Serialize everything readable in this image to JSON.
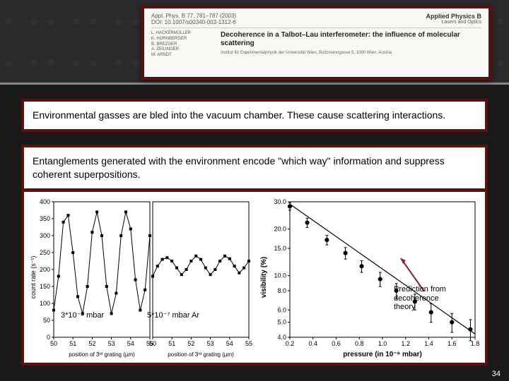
{
  "header": {
    "ref": "Appl. Phys. B 77, 781–787 (2003)",
    "doi": "DOI: 10.1007/s00340-003-1312-6",
    "journal": "Applied Physics B",
    "journal_sub": "Lasers and Optics",
    "authors": [
      "L. HACKERMÜLLER",
      "K. HORNBERGER",
      "B. BREZGER",
      "A. ZEILINGER",
      "M. ARNDT"
    ],
    "title": "Decoherence in a Talbot–Lau interferometer: the influence of molecular scattering",
    "affiliation": "Institut für Experimentalphysik der Universität Wien, Boltzmanngasse 5, 1090 Wien, Austria"
  },
  "text1": "Environmental gasses are bled into the vacuum chamber. These cause scattering interactions.",
  "text2": "Entanglements generated with the environment encode \"which way\" information and suppress coherent superpositions.",
  "annot_left": "3*10⁻⁸ mbar",
  "annot_mid": "5*10⁻⁷ mbar Ar",
  "annot_right": "Prediction from decoherence theory",
  "page_number": "34",
  "left_chart": {
    "type": "line-scatter-dual",
    "ylabel": "count rate (s⁻¹)",
    "ylim": [
      0,
      400
    ],
    "ytick_step": 50,
    "xlabel_a": "position of 3ʳᵈ grating (µm)",
    "xlabel_b": "position of 3ʳᵈ grating (µm)",
    "xlim": [
      50,
      55
    ],
    "xtick_step": 1,
    "marker": "square",
    "marker_size": 4,
    "marker_color": "#000000",
    "line_color": "#000000",
    "background_color": "#ffffff",
    "axis_color": "#000000",
    "font_size": 9,
    "panel_a": {
      "x": [
        50.0,
        50.25,
        50.5,
        50.75,
        51.0,
        51.25,
        51.5,
        51.75,
        52.0,
        52.25,
        52.5,
        52.75,
        53.0,
        53.25,
        53.5,
        53.75,
        54.0,
        54.25,
        54.5,
        54.75,
        55.0
      ],
      "y": [
        80,
        180,
        340,
        360,
        250,
        120,
        70,
        150,
        310,
        370,
        300,
        150,
        70,
        130,
        300,
        370,
        320,
        170,
        80,
        140,
        300
      ]
    },
    "panel_b": {
      "x": [
        50.0,
        50.25,
        50.5,
        50.75,
        51.0,
        51.25,
        51.5,
        51.75,
        52.0,
        52.25,
        52.5,
        52.75,
        53.0,
        53.25,
        53.5,
        53.75,
        54.0,
        54.25,
        54.5,
        54.75,
        55.0
      ],
      "y": [
        180,
        210,
        230,
        235,
        225,
        205,
        185,
        200,
        225,
        240,
        230,
        205,
        185,
        200,
        225,
        240,
        232,
        210,
        190,
        205,
        225
      ]
    }
  },
  "right_chart": {
    "type": "log-scatter-line",
    "ylabel": "visibility (%)",
    "ylim": [
      4,
      30
    ],
    "yticks": [
      4,
      5,
      6,
      8,
      10,
      15,
      20,
      30
    ],
    "xlabel": "pressure (in 10⁻⁶ mbar)",
    "xlim": [
      0.2,
      1.8
    ],
    "xtick_step": 0.2,
    "marker": "circle",
    "marker_size": 4,
    "marker_color": "#000000",
    "errorbar_color": "#000000",
    "line_color": "#000000",
    "background_color": "#ffffff",
    "axis_color": "#000000",
    "font_size": 9,
    "arrow_color": "#8b2020",
    "data": {
      "x": [
        0.2,
        0.35,
        0.52,
        0.68,
        0.82,
        0.98,
        1.12,
        1.28,
        1.42,
        1.6,
        1.76
      ],
      "y": [
        28.0,
        22.0,
        17.0,
        14.0,
        11.5,
        9.5,
        8.0,
        6.8,
        5.8,
        5.0,
        4.5
      ],
      "err": [
        1.5,
        1.5,
        1.2,
        1.2,
        1.0,
        1.0,
        0.9,
        0.8,
        0.8,
        0.7,
        0.7
      ]
    },
    "fit_line": {
      "x": [
        0.2,
        1.8
      ],
      "y": [
        29,
        4.2
      ]
    }
  }
}
